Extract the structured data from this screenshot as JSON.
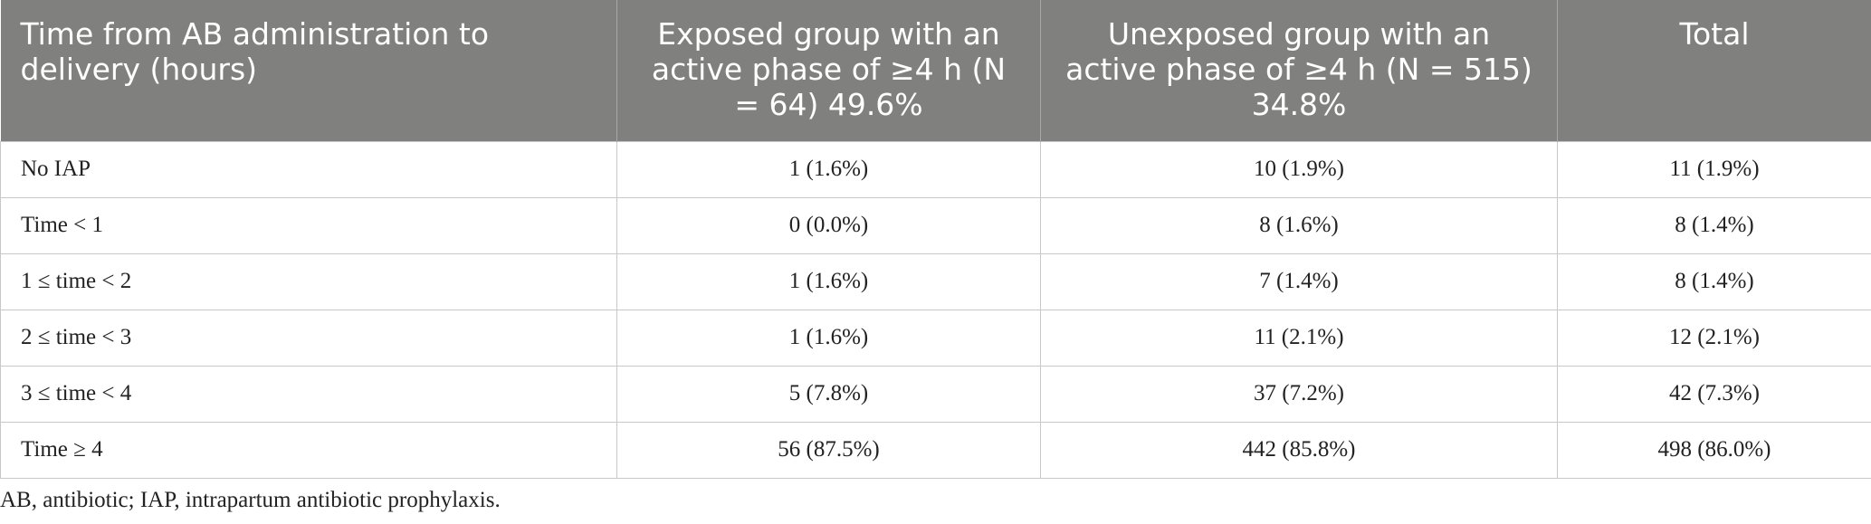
{
  "table": {
    "header": [
      "Time from AB administration to delivery (hours)",
      "Exposed group with an active phase of ≥4 h (N = 64) 49.6%",
      "Unexposed group with an active phase of ≥4 h (N = 515) 34.8%",
      "Total"
    ],
    "rows": [
      [
        "No IAP",
        "1 (1.6%)",
        "10 (1.9%)",
        "11 (1.9%)"
      ],
      [
        "Time < 1",
        "0 (0.0%)",
        "8 (1.6%)",
        "8 (1.4%)"
      ],
      [
        "1 ≤ time < 2",
        "1 (1.6%)",
        "7 (1.4%)",
        "8 (1.4%)"
      ],
      [
        "2 ≤ time < 3",
        "1 (1.6%)",
        "11 (2.1%)",
        "12 (2.1%)"
      ],
      [
        "3 ≤ time < 4",
        "5 (7.8%)",
        "37 (7.2%)",
        "42 (7.3%)"
      ],
      [
        "Time ≥ 4",
        "56 (87.5%)",
        "442 (85.8%)",
        "498 (86.0%)"
      ]
    ]
  },
  "footnote": "AB, antibiotic; IAP, intrapartum antibiotic prophylaxis."
}
